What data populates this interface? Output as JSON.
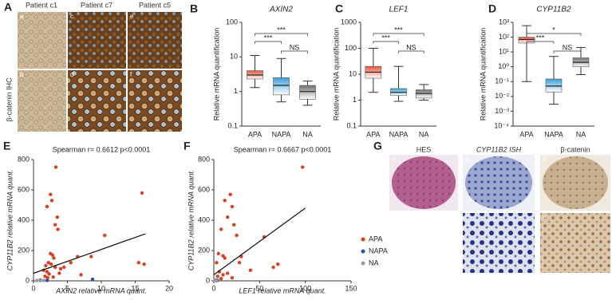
{
  "panel_labels": [
    "A",
    "B",
    "C",
    "D",
    "E",
    "F",
    "G"
  ],
  "panel_a": {
    "columns": [
      "Patient c1",
      "Patient c7",
      "Patient c5"
    ],
    "row_label": "β-catenin IHC",
    "sub_labels": [
      "a",
      "c",
      "e",
      "b",
      "d",
      "f"
    ]
  },
  "panel_g": {
    "columns": [
      "HES",
      "CYP11B2 ISH",
      "β-catenin"
    ],
    "sub_labels": [
      "a",
      "b",
      "d",
      "c",
      "e"
    ]
  },
  "chart_data": [
    {
      "type": "box",
      "title": "AXIN2",
      "ylabel": "Relative mRNA quantification",
      "categories": [
        "APA",
        "NAPA",
        "NA"
      ],
      "colors": [
        "#e8533c",
        "#3a9fd6",
        "#6f6f6f"
      ],
      "log_scale": true,
      "whisker_low": [
        1.3,
        0.5,
        0.4
      ],
      "q1": [
        2.3,
        0.8,
        0.6
      ],
      "median": [
        3,
        1.5,
        1
      ],
      "q3": [
        4,
        2.5,
        1.5
      ],
      "whisker_high": [
        11,
        9,
        2
      ],
      "ylim": [
        0.1,
        100
      ],
      "yticks": [
        0.1,
        1,
        10,
        100
      ],
      "annotations": [
        "***",
        "***",
        "NS"
      ]
    },
    {
      "type": "box",
      "title": "LEF1",
      "ylabel": "Relative mRNA quantification",
      "categories": [
        "APA",
        "NAPA",
        "NA"
      ],
      "colors": [
        "#e8533c",
        "#3a9fd6",
        "#6f6f6f"
      ],
      "log_scale": true,
      "whisker_low": [
        2,
        0.9,
        1
      ],
      "q1": [
        7,
        1.5,
        1.2
      ],
      "median": [
        12,
        2,
        1.8
      ],
      "q3": [
        20,
        2.8,
        2.5
      ],
      "whisker_high": [
        100,
        20,
        4
      ],
      "ylim": [
        0.1,
        1000
      ],
      "yticks": [
        0.1,
        1,
        10,
        100,
        1000
      ],
      "annotations": [
        "***",
        "***",
        "NS"
      ]
    },
    {
      "type": "box",
      "title": "CYP11B2",
      "ylabel": "Relative mRNA quantification",
      "categories": [
        "APA",
        "NAPA",
        "NA"
      ],
      "colors": [
        "#e8533c",
        "#3a9fd6",
        "#6f6f6f"
      ],
      "log_scale": true,
      "whisker_low": [
        0.1,
        0.003,
        0.3
      ],
      "q1": [
        40,
        0.02,
        1
      ],
      "median": [
        70,
        0.05,
        2
      ],
      "q3": [
        100,
        0.15,
        4
      ],
      "whisker_high": [
        600,
        5,
        20
      ],
      "ylim": [
        0.0001,
        1000
      ],
      "yticks": [
        {
          "value": 0.0001,
          "label": "10⁻⁴"
        },
        {
          "value": 0.001,
          "label": "10⁻³"
        },
        {
          "value": 0.01,
          "label": "10⁻²"
        },
        {
          "value": 0.1,
          "label": "10⁻¹"
        },
        {
          "value": 1,
          "label": "10⁰"
        },
        {
          "value": 10,
          "label": "10¹"
        },
        {
          "value": 100,
          "label": "10²"
        },
        {
          "value": 1000,
          "label": "10³"
        }
      ],
      "annotations": [
        "*",
        "***",
        "NS"
      ]
    },
    {
      "type": "scatter",
      "title": "Spearman r= 0.6612 p<0.0001",
      "xlabel": "AXIN2 relative mRNA quant.",
      "ylabel": "CYP11B2 relative mRNA quant.",
      "xlim": [
        0,
        20
      ],
      "xticks": [
        0,
        5,
        10,
        15,
        20
      ],
      "ylim": [
        0,
        800
      ],
      "yticks": [
        0,
        200,
        400,
        600,
        800
      ],
      "legend": false,
      "series": [
        {
          "name": "APA",
          "color": "#d9401f",
          "x": [
            3.3,
            2.5,
            2.7,
            2.0,
            3.5,
            3.2,
            3.6,
            16,
            16.3,
            15.5,
            10.5,
            8.5,
            6.5,
            2.5,
            2.8,
            3,
            2.2,
            2.6,
            1.8,
            3.2,
            4,
            1.5,
            2,
            2.3,
            3.8,
            1.7,
            2.9,
            5.5,
            4.5,
            2.1,
            7
          ],
          "y": [
            750,
            570,
            530,
            490,
            420,
            370,
            340,
            580,
            110,
            120,
            300,
            160,
            160,
            180,
            170,
            150,
            120,
            110,
            100,
            90,
            80,
            70,
            60,
            45,
            50,
            30,
            25,
            120,
            90,
            20,
            40
          ]
        },
        {
          "name": "NAPA",
          "color": "#2c4fa8",
          "x": [
            8.7,
            1,
            2
          ],
          "y": [
            10,
            5,
            3
          ]
        },
        {
          "name": "NA",
          "color": "#9a9a9a",
          "x": [
            0.5,
            1,
            1.5
          ],
          "y": [
            2,
            1,
            2
          ]
        }
      ],
      "trend_line": {
        "x": [
          0,
          16.5
        ],
        "y": [
          50,
          310
        ]
      }
    },
    {
      "type": "scatter",
      "title": "Spearman r= 0.6667 p<0.0001",
      "xlabel": "LEF1 relative mRNA quant.",
      "ylabel": "CYP11B2 relative mRNA quant.",
      "xlim": [
        0,
        150
      ],
      "xticks": [
        0,
        50,
        100,
        150
      ],
      "ylim": [
        0,
        800
      ],
      "yticks": [
        0,
        200,
        400,
        600,
        800
      ],
      "legend": true,
      "series": [
        {
          "name": "APA",
          "color": "#d9401f",
          "x": [
            97,
            18,
            12,
            20,
            15,
            22,
            8,
            25,
            55,
            5,
            10,
            30,
            12,
            28,
            70,
            65,
            3,
            40,
            6,
            15,
            10,
            4,
            20,
            8
          ],
          "y": [
            750,
            570,
            530,
            490,
            420,
            370,
            340,
            300,
            290,
            180,
            165,
            160,
            150,
            120,
            110,
            90,
            120,
            70,
            60,
            50,
            40,
            30,
            20,
            15
          ]
        },
        {
          "name": "NAPA",
          "color": "#2c4fa8",
          "x": [
            2,
            4
          ],
          "y": [
            5,
            3
          ]
        },
        {
          "name": "NA",
          "color": "#9a9a9a",
          "x": [
            1,
            3
          ],
          "y": [
            2,
            1
          ]
        }
      ],
      "trend_line": {
        "x": [
          0,
          100
        ],
        "y": [
          40,
          480
        ]
      }
    }
  ]
}
